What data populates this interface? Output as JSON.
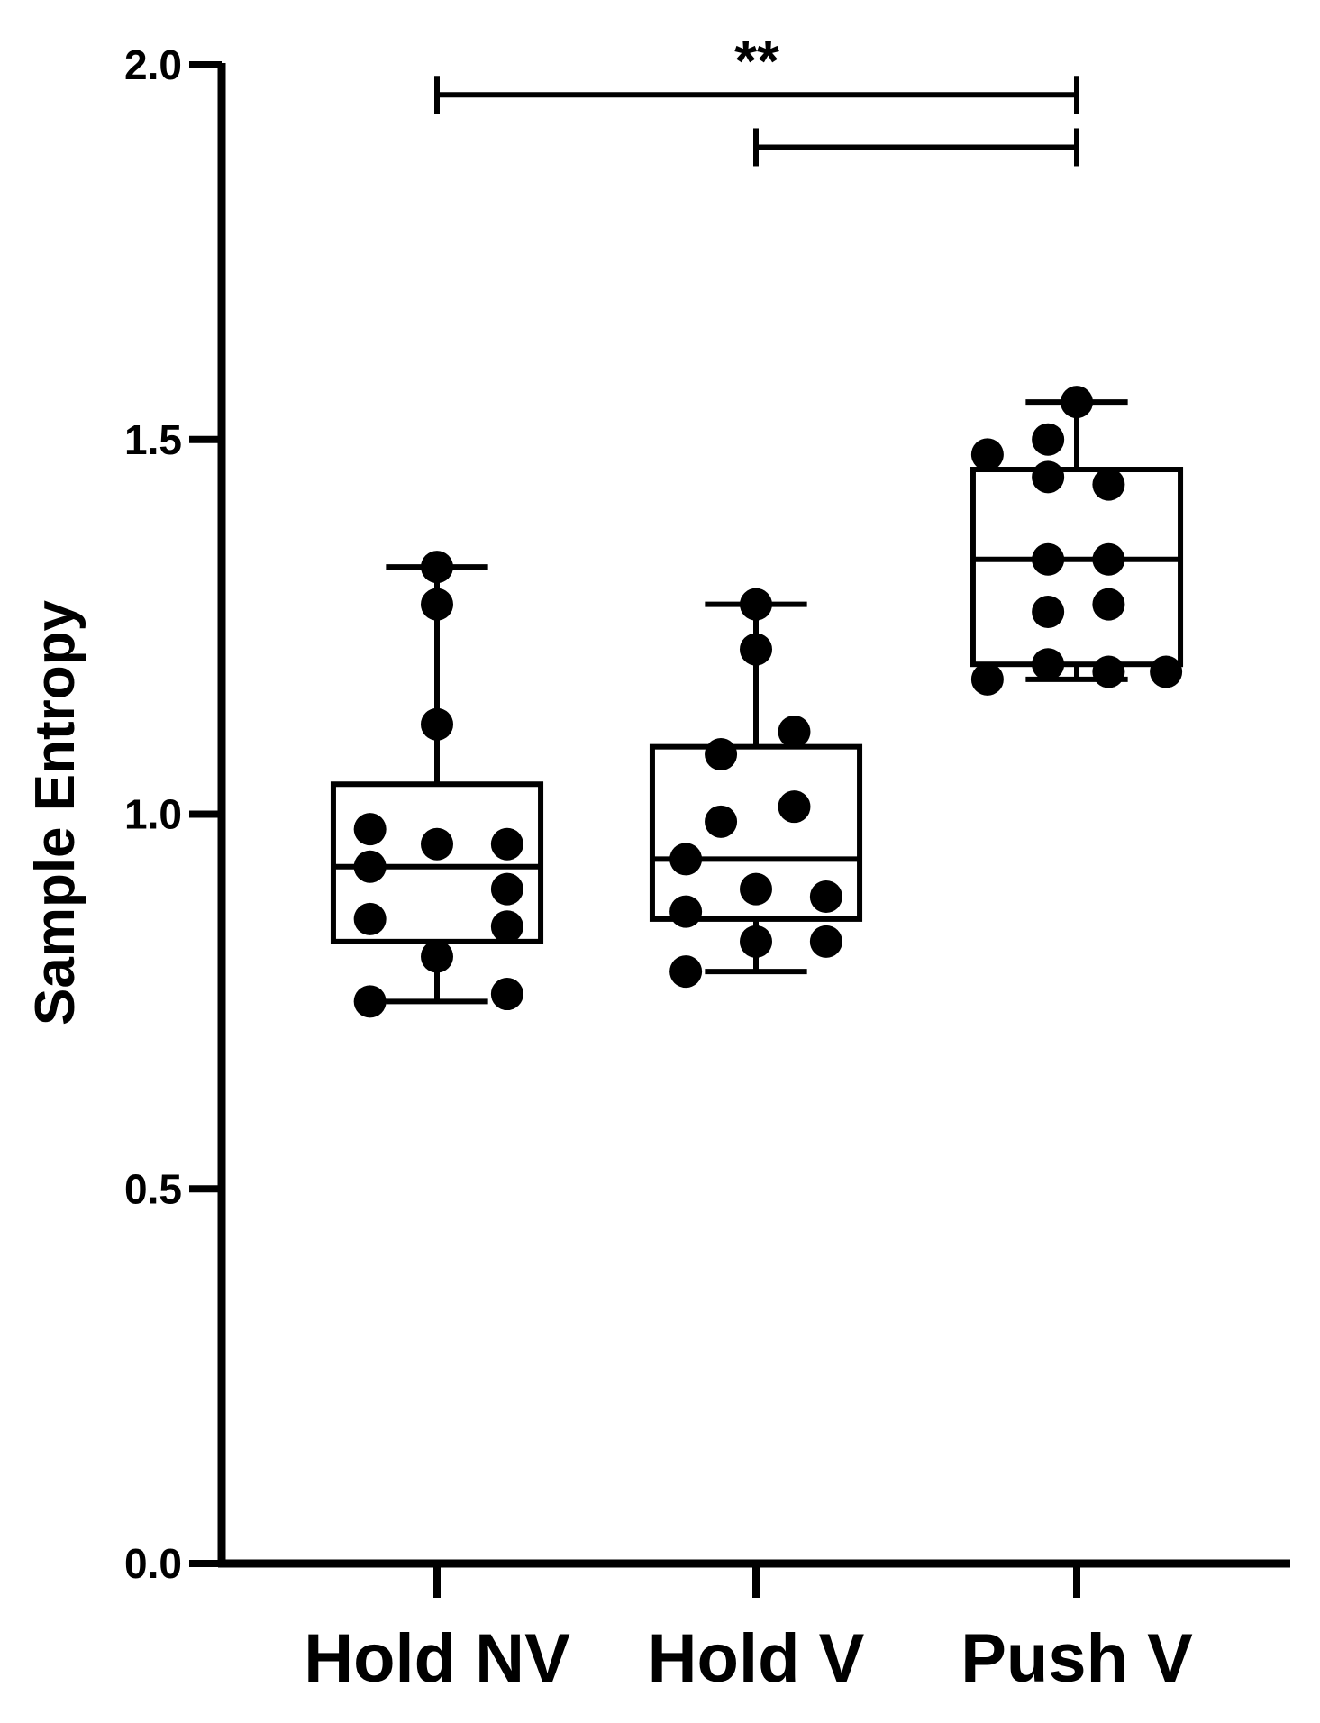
{
  "chart_data": {
    "type": "box",
    "title": "",
    "xlabel": "",
    "ylabel": "Sample Entropy",
    "ylim": [
      0,
      2.0
    ],
    "yticks": [
      0.0,
      0.5,
      1.0,
      1.5,
      2.0
    ],
    "ytick_labels": [
      "0.0",
      "0.5",
      "1.0",
      "1.5",
      "2.0"
    ],
    "categories": [
      "Hold NV",
      "Hold V",
      "Push V"
    ],
    "grid": false,
    "legend": "none",
    "colors": {
      "stroke": "#000000",
      "points": "#000000",
      "background": "#ffffff"
    },
    "series": [
      {
        "category": "Hold NV",
        "box": {
          "min": 0.75,
          "q1": 0.83,
          "median": 0.93,
          "q3": 1.04,
          "max": 1.33
        },
        "points": [
          {
            "x": -0.21,
            "y": 0.75
          },
          {
            "x": 0.22,
            "y": 0.76
          },
          {
            "x": 0.0,
            "y": 0.81
          },
          {
            "x": -0.21,
            "y": 0.86
          },
          {
            "x": 0.22,
            "y": 0.85
          },
          {
            "x": -0.21,
            "y": 0.93
          },
          {
            "x": 0.22,
            "y": 0.9
          },
          {
            "x": -0.21,
            "y": 0.98
          },
          {
            "x": 0.0,
            "y": 0.96
          },
          {
            "x": 0.22,
            "y": 0.96
          },
          {
            "x": 0.0,
            "y": 1.12
          },
          {
            "x": 0.0,
            "y": 1.28
          },
          {
            "x": 0.0,
            "y": 1.33
          }
        ]
      },
      {
        "category": "Hold V",
        "box": {
          "min": 0.79,
          "q1": 0.86,
          "median": 0.94,
          "q3": 1.09,
          "max": 1.28
        },
        "points": [
          {
            "x": -0.22,
            "y": 0.79
          },
          {
            "x": 0.0,
            "y": 0.83
          },
          {
            "x": 0.22,
            "y": 0.83
          },
          {
            "x": -0.22,
            "y": 0.87
          },
          {
            "x": 0.0,
            "y": 0.9
          },
          {
            "x": 0.22,
            "y": 0.89
          },
          {
            "x": -0.22,
            "y": 0.94
          },
          {
            "x": -0.11,
            "y": 0.99
          },
          {
            "x": 0.12,
            "y": 1.01
          },
          {
            "x": -0.11,
            "y": 1.08
          },
          {
            "x": 0.12,
            "y": 1.11
          },
          {
            "x": 0.0,
            "y": 1.22
          },
          {
            "x": 0.0,
            "y": 1.28
          }
        ]
      },
      {
        "category": "Push V",
        "box": {
          "min": 1.18,
          "q1": 1.2,
          "median": 1.34,
          "q3": 1.46,
          "max": 1.55
        },
        "points": [
          {
            "x": -0.28,
            "y": 1.18
          },
          {
            "x": 0.1,
            "y": 1.19
          },
          {
            "x": 0.28,
            "y": 1.19
          },
          {
            "x": -0.09,
            "y": 1.2
          },
          {
            "x": -0.09,
            "y": 1.27
          },
          {
            "x": 0.1,
            "y": 1.28
          },
          {
            "x": -0.09,
            "y": 1.34
          },
          {
            "x": 0.1,
            "y": 1.34
          },
          {
            "x": -0.09,
            "y": 1.45
          },
          {
            "x": 0.1,
            "y": 1.44
          },
          {
            "x": -0.28,
            "y": 1.48
          },
          {
            "x": -0.09,
            "y": 1.5
          },
          {
            "x": 0.0,
            "y": 1.55
          }
        ]
      }
    ],
    "whisker_cap_width": 0.32,
    "box_width": 0.65,
    "annotations": [
      {
        "type": "significance",
        "from": "Hold NV",
        "to": "Push V",
        "y": 1.96,
        "label": "**"
      },
      {
        "type": "significance",
        "from": "Hold V",
        "to": "Push V",
        "y": 1.89,
        "label": ""
      }
    ]
  }
}
